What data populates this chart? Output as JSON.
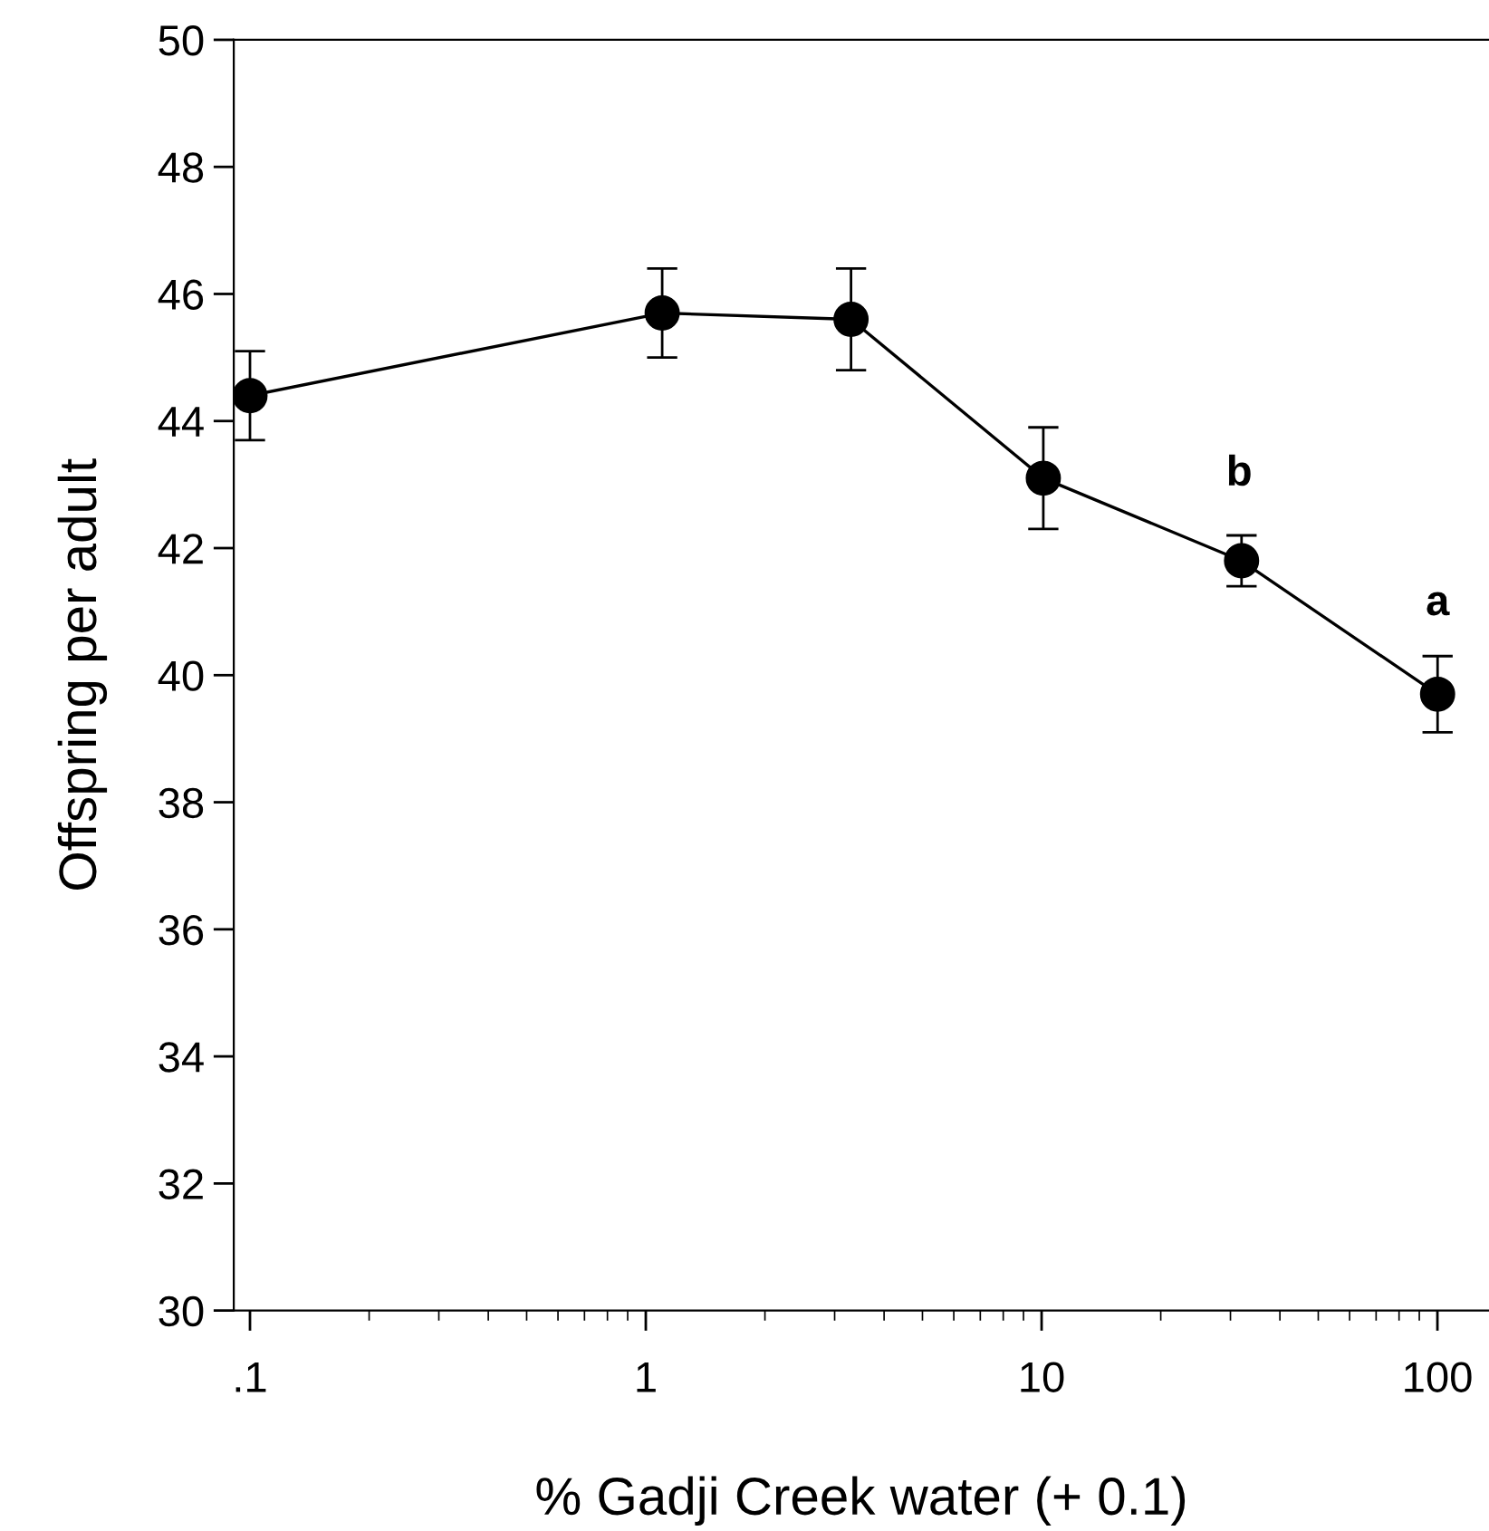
{
  "chart_data": {
    "type": "line",
    "xlabel": "% Gadji Creek water (+ 0.1)",
    "ylabel": "Offspring per adult",
    "x": [
      0.1,
      1.1,
      3.3,
      10.1,
      32,
      100.1
    ],
    "series": [
      {
        "color": "#000000",
        "values": [
          44.4,
          45.7,
          45.6,
          43.1,
          41.8,
          39.7
        ],
        "errors": [
          0.7,
          0.7,
          0.8,
          0.8,
          0.4,
          0.6
        ]
      }
    ],
    "marker": "circle",
    "line_style": "solid",
    "log": "x",
    "grid": false,
    "legend": false,
    "xlim": [
      0.091,
      135
    ],
    "xticks": [
      {
        "value": 0.1,
        "label": ".1"
      },
      1,
      10,
      100
    ],
    "ylim": [
      30,
      50
    ],
    "yticks": [
      30,
      32,
      34,
      36,
      38,
      40,
      42,
      44,
      46,
      48,
      50
    ],
    "annotations": [
      "b",
      "a"
    ]
  }
}
